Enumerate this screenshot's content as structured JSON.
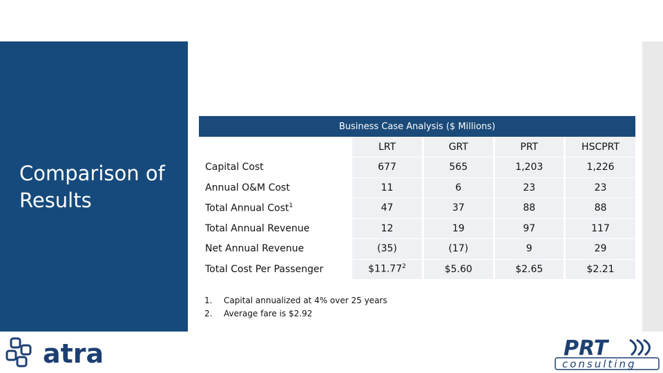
{
  "slide": {
    "title": "Comparison of Results"
  },
  "table": {
    "caption": "Business Case Analysis ($ Millions)",
    "columns": [
      "",
      "LRT",
      "GRT",
      "PRT",
      "HSCPRT"
    ],
    "rows": [
      {
        "label": "Capital Cost",
        "values": [
          "677",
          "565",
          "1,203",
          "1,226"
        ]
      },
      {
        "label": "Annual O&M Cost",
        "values": [
          "11",
          "6",
          "23",
          "23"
        ]
      },
      {
        "label": "Total Annual Cost",
        "label_sup": "1",
        "values": [
          "47",
          "37",
          "88",
          "88"
        ]
      },
      {
        "label": "Total Annual Revenue",
        "values": [
          "12",
          "19",
          "97",
          "117"
        ]
      },
      {
        "label": "Net Annual Revenue",
        "values": [
          "(35)",
          "(17)",
          "9",
          "29"
        ]
      },
      {
        "label": "Total Cost Per Passenger",
        "values": [
          "$11.77",
          "$5.60",
          "$2.65",
          "$2.21"
        ],
        "first_value_sup": "2"
      }
    ]
  },
  "footnotes": [
    {
      "num": "1.",
      "text": "Capital annualized at 4% over 25 years"
    },
    {
      "num": "2.",
      "text": "Average fare is $2.92"
    }
  ],
  "logos": {
    "left": {
      "text": "atra",
      "color": "#1d3f73"
    },
    "right": {
      "text_main": "PRT",
      "text_sub": "consulting",
      "color": "#1d3f73"
    }
  },
  "colors": {
    "panel": "#164a7c",
    "header": "#1a4a79",
    "cell": "#eef0f4"
  }
}
